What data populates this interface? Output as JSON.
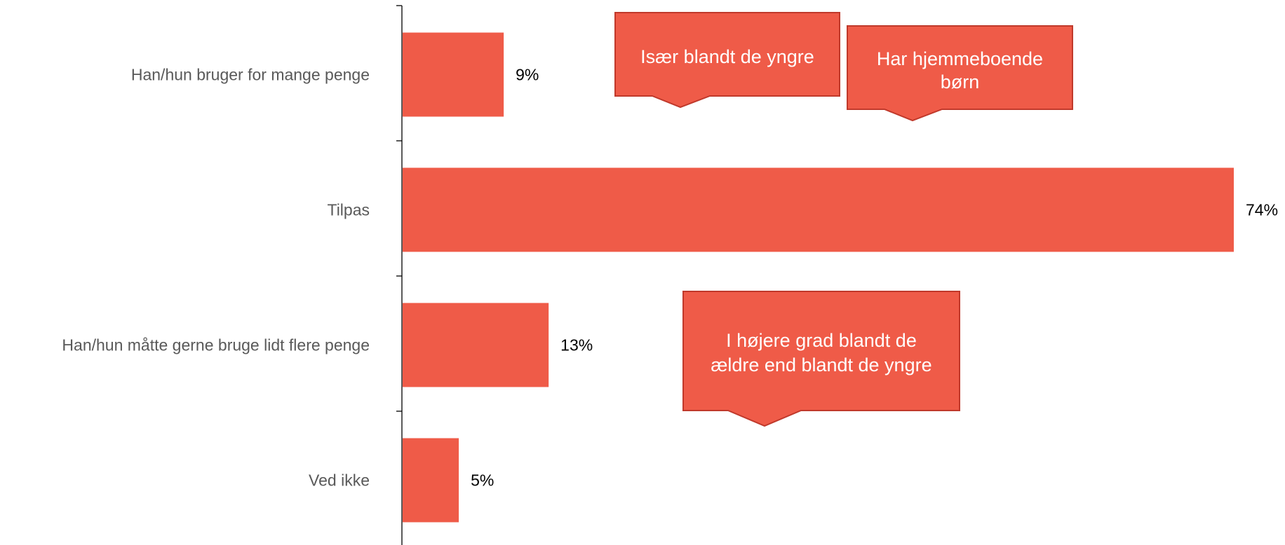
{
  "chart_data": {
    "type": "bar",
    "orientation": "horizontal",
    "categories": [
      "Han/hun bruger for mange penge",
      "Tilpas",
      "Han/hun måtte gerne bruge lidt flere penge",
      "Ved ikke"
    ],
    "values": [
      9,
      74,
      13,
      5
    ],
    "value_labels": [
      "9%",
      "74%",
      "13%",
      "5%"
    ],
    "unit": "%",
    "xlim": [
      0,
      74
    ],
    "grid": false,
    "legend": "none",
    "bar_color": "#EF5B48",
    "axis_color": "#000000",
    "callouts": [
      {
        "lines": [
          "Især blandt de yngre"
        ]
      },
      {
        "lines": [
          "Har hjemmeboende",
          "børn"
        ]
      },
      {
        "lines": [
          "I højere grad blandt de",
          "ældre end blandt de yngre"
        ]
      }
    ],
    "callout_fill": "#EF5B48",
    "callout_stroke": "#C0392B"
  }
}
